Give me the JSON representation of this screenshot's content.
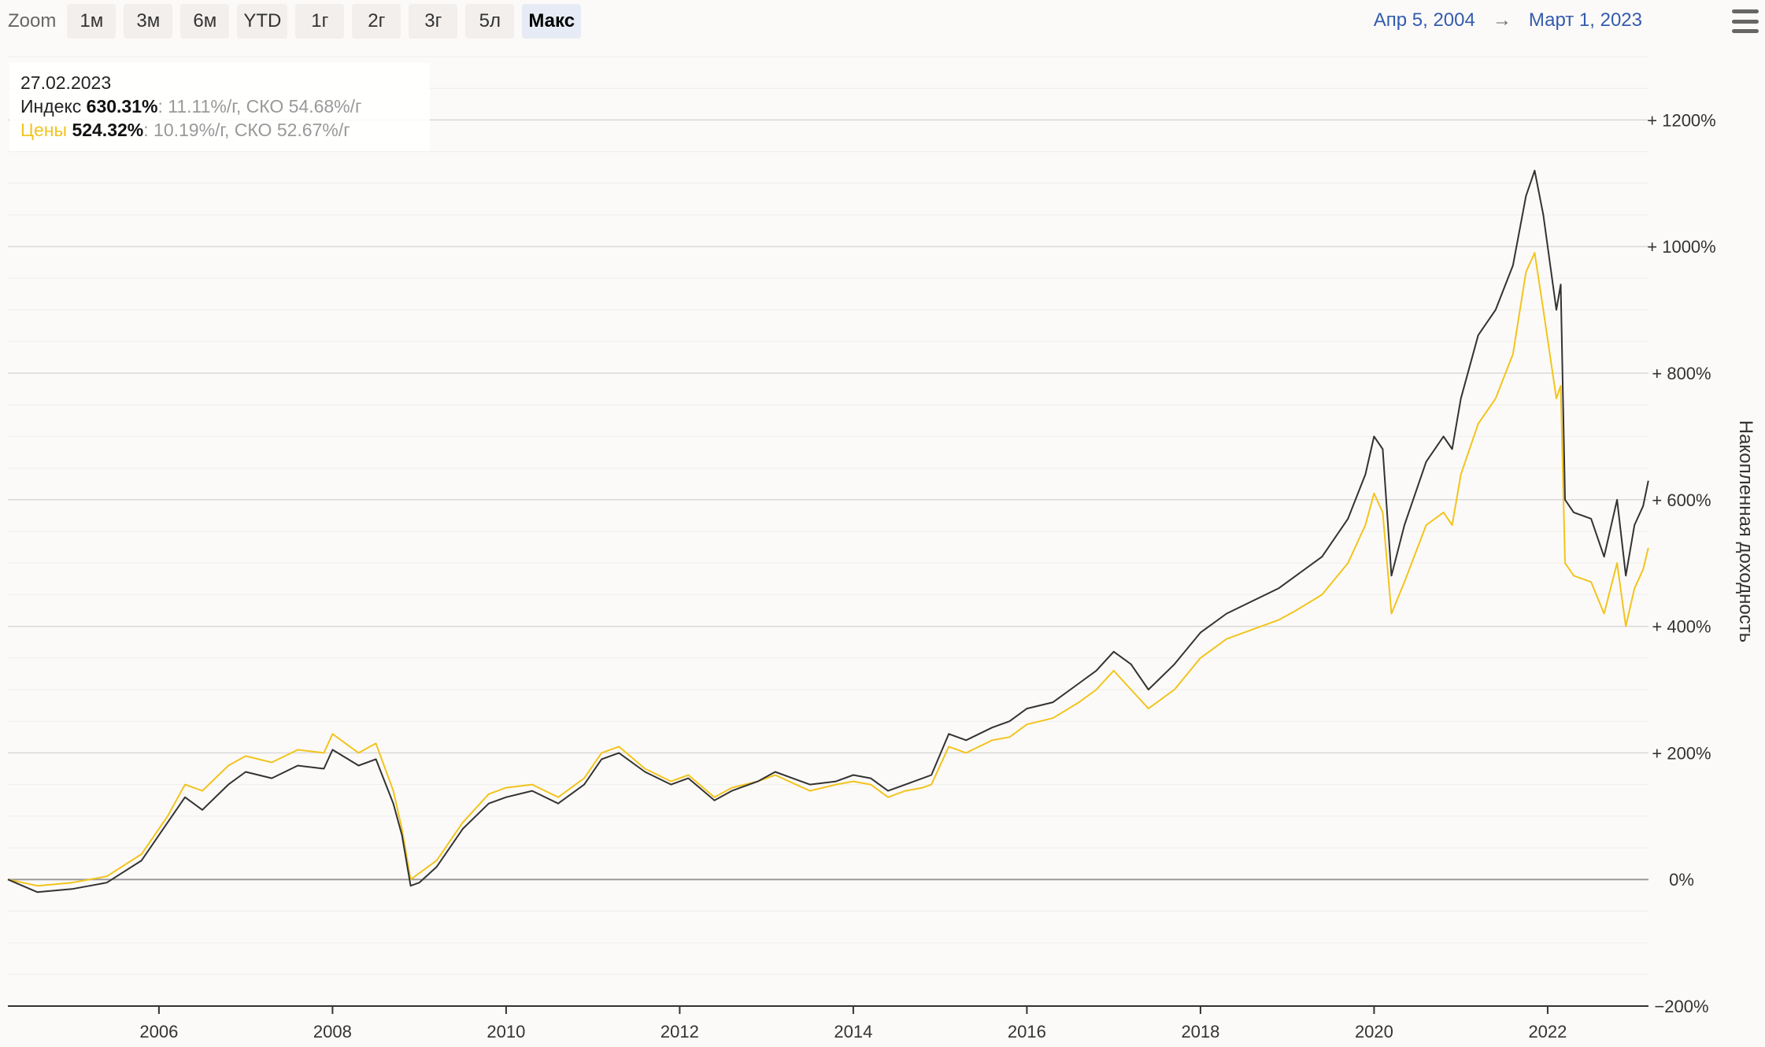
{
  "toolbar": {
    "zoom_label": "Zoom",
    "buttons": [
      "1м",
      "3м",
      "6м",
      "YTD",
      "1г",
      "2г",
      "3г",
      "5л",
      "Макс"
    ],
    "active": "Макс"
  },
  "range": {
    "from": "Апр 5, 2004",
    "arrow": "→",
    "to": "Март 1, 2023"
  },
  "tooltip": {
    "date": "27.02.2023",
    "series1": {
      "name": "Индекс",
      "value": "630.31%",
      "stats": ": 11.11%/г, СКО 54.68%/г"
    },
    "series2": {
      "name": "Цены",
      "value": "524.32%",
      "stats": ": 10.19%/г, СКО 52.67%/г"
    }
  },
  "chart_data": {
    "type": "line",
    "ylabel": "Накопленная доходность",
    "x_start": "2004-04-05",
    "x_end": "2023-03-01",
    "ylim": [
      -200,
      1300
    ],
    "yticks": [
      -200,
      0,
      200,
      400,
      600,
      800,
      1000,
      1200
    ],
    "ytick_labels": [
      "−200%",
      "0%",
      "+ 200%",
      "+ 400%",
      "+ 600%",
      "+ 800%",
      "+ 1000%",
      "+ 1200%"
    ],
    "xticks": [
      "2006",
      "2008",
      "2010",
      "2012",
      "2014",
      "2016",
      "2018",
      "2020",
      "2022"
    ],
    "grid": true,
    "colors": {
      "Индекс": "#333333",
      "Цены": "#f2c41d"
    },
    "series": [
      {
        "name": "Индекс",
        "points": [
          [
            2004.26,
            0
          ],
          [
            2004.6,
            -20
          ],
          [
            2005.0,
            -15
          ],
          [
            2005.4,
            -5
          ],
          [
            2005.8,
            30
          ],
          [
            2006.1,
            90
          ],
          [
            2006.3,
            130
          ],
          [
            2006.5,
            110
          ],
          [
            2006.8,
            150
          ],
          [
            2007.0,
            170
          ],
          [
            2007.3,
            160
          ],
          [
            2007.6,
            180
          ],
          [
            2007.9,
            175
          ],
          [
            2008.0,
            205
          ],
          [
            2008.3,
            180
          ],
          [
            2008.5,
            190
          ],
          [
            2008.7,
            120
          ],
          [
            2008.8,
            70
          ],
          [
            2008.9,
            -10
          ],
          [
            2009.0,
            -5
          ],
          [
            2009.2,
            20
          ],
          [
            2009.5,
            80
          ],
          [
            2009.8,
            120
          ],
          [
            2010.0,
            130
          ],
          [
            2010.3,
            140
          ],
          [
            2010.6,
            120
          ],
          [
            2010.9,
            150
          ],
          [
            2011.1,
            190
          ],
          [
            2011.3,
            200
          ],
          [
            2011.6,
            170
          ],
          [
            2011.9,
            150
          ],
          [
            2012.1,
            160
          ],
          [
            2012.4,
            125
          ],
          [
            2012.6,
            140
          ],
          [
            2012.9,
            155
          ],
          [
            2013.1,
            170
          ],
          [
            2013.5,
            150
          ],
          [
            2013.8,
            155
          ],
          [
            2014.0,
            165
          ],
          [
            2014.2,
            160
          ],
          [
            2014.4,
            140
          ],
          [
            2014.6,
            150
          ],
          [
            2014.8,
            160
          ],
          [
            2014.9,
            165
          ],
          [
            2015.1,
            230
          ],
          [
            2015.3,
            220
          ],
          [
            2015.6,
            240
          ],
          [
            2015.8,
            250
          ],
          [
            2016.0,
            270
          ],
          [
            2016.3,
            280
          ],
          [
            2016.6,
            310
          ],
          [
            2016.8,
            330
          ],
          [
            2017.0,
            360
          ],
          [
            2017.2,
            340
          ],
          [
            2017.4,
            300
          ],
          [
            2017.7,
            340
          ],
          [
            2018.0,
            390
          ],
          [
            2018.3,
            420
          ],
          [
            2018.6,
            440
          ],
          [
            2018.9,
            460
          ],
          [
            2019.1,
            480
          ],
          [
            2019.4,
            510
          ],
          [
            2019.7,
            570
          ],
          [
            2019.9,
            640
          ],
          [
            2020.0,
            700
          ],
          [
            2020.1,
            680
          ],
          [
            2020.2,
            480
          ],
          [
            2020.35,
            560
          ],
          [
            2020.6,
            660
          ],
          [
            2020.8,
            700
          ],
          [
            2020.9,
            680
          ],
          [
            2021.0,
            760
          ],
          [
            2021.2,
            860
          ],
          [
            2021.4,
            900
          ],
          [
            2021.6,
            970
          ],
          [
            2021.75,
            1080
          ],
          [
            2021.85,
            1120
          ],
          [
            2021.95,
            1050
          ],
          [
            2022.1,
            900
          ],
          [
            2022.15,
            940
          ],
          [
            2022.2,
            600
          ],
          [
            2022.3,
            580
          ],
          [
            2022.5,
            570
          ],
          [
            2022.65,
            510
          ],
          [
            2022.8,
            600
          ],
          [
            2022.9,
            480
          ],
          [
            2023.0,
            560
          ],
          [
            2023.1,
            590
          ],
          [
            2023.16,
            630
          ]
        ]
      },
      {
        "name": "Цены",
        "points": [
          [
            2004.26,
            0
          ],
          [
            2004.6,
            -10
          ],
          [
            2005.0,
            -5
          ],
          [
            2005.4,
            5
          ],
          [
            2005.8,
            40
          ],
          [
            2006.1,
            100
          ],
          [
            2006.3,
            150
          ],
          [
            2006.5,
            140
          ],
          [
            2006.8,
            180
          ],
          [
            2007.0,
            195
          ],
          [
            2007.3,
            185
          ],
          [
            2007.6,
            205
          ],
          [
            2007.9,
            200
          ],
          [
            2008.0,
            230
          ],
          [
            2008.3,
            200
          ],
          [
            2008.5,
            215
          ],
          [
            2008.7,
            140
          ],
          [
            2008.8,
            80
          ],
          [
            2008.9,
            0
          ],
          [
            2009.0,
            10
          ],
          [
            2009.2,
            30
          ],
          [
            2009.5,
            90
          ],
          [
            2009.8,
            135
          ],
          [
            2010.0,
            145
          ],
          [
            2010.3,
            150
          ],
          [
            2010.6,
            130
          ],
          [
            2010.9,
            160
          ],
          [
            2011.1,
            200
          ],
          [
            2011.3,
            210
          ],
          [
            2011.6,
            175
          ],
          [
            2011.9,
            155
          ],
          [
            2012.1,
            165
          ],
          [
            2012.4,
            130
          ],
          [
            2012.6,
            145
          ],
          [
            2012.9,
            155
          ],
          [
            2013.1,
            165
          ],
          [
            2013.5,
            140
          ],
          [
            2013.8,
            150
          ],
          [
            2014.0,
            155
          ],
          [
            2014.2,
            150
          ],
          [
            2014.4,
            130
          ],
          [
            2014.6,
            140
          ],
          [
            2014.8,
            145
          ],
          [
            2014.9,
            150
          ],
          [
            2015.1,
            210
          ],
          [
            2015.3,
            200
          ],
          [
            2015.6,
            220
          ],
          [
            2015.8,
            225
          ],
          [
            2016.0,
            245
          ],
          [
            2016.3,
            255
          ],
          [
            2016.6,
            280
          ],
          [
            2016.8,
            300
          ],
          [
            2017.0,
            330
          ],
          [
            2017.2,
            300
          ],
          [
            2017.4,
            270
          ],
          [
            2017.7,
            300
          ],
          [
            2018.0,
            350
          ],
          [
            2018.3,
            380
          ],
          [
            2018.6,
            395
          ],
          [
            2018.9,
            410
          ],
          [
            2019.1,
            425
          ],
          [
            2019.4,
            450
          ],
          [
            2019.7,
            500
          ],
          [
            2019.9,
            560
          ],
          [
            2020.0,
            610
          ],
          [
            2020.1,
            580
          ],
          [
            2020.2,
            420
          ],
          [
            2020.35,
            470
          ],
          [
            2020.6,
            560
          ],
          [
            2020.8,
            580
          ],
          [
            2020.9,
            560
          ],
          [
            2021.0,
            640
          ],
          [
            2021.2,
            720
          ],
          [
            2021.4,
            760
          ],
          [
            2021.6,
            830
          ],
          [
            2021.75,
            960
          ],
          [
            2021.85,
            990
          ],
          [
            2021.95,
            900
          ],
          [
            2022.1,
            760
          ],
          [
            2022.15,
            780
          ],
          [
            2022.2,
            500
          ],
          [
            2022.3,
            480
          ],
          [
            2022.5,
            470
          ],
          [
            2022.65,
            420
          ],
          [
            2022.8,
            500
          ],
          [
            2022.9,
            400
          ],
          [
            2023.0,
            460
          ],
          [
            2023.1,
            490
          ],
          [
            2023.16,
            524
          ]
        ]
      }
    ]
  }
}
